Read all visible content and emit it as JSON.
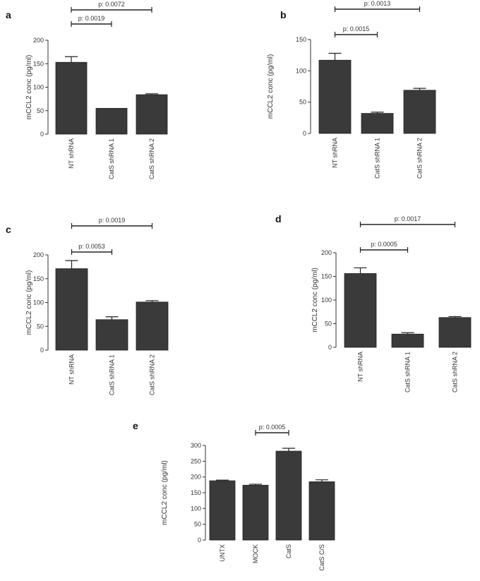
{
  "chart_data": [
    {
      "panel": "a",
      "type": "bar",
      "ylabel": "mCCL2 conc (pg/ml)",
      "ylim": [
        0,
        200
      ],
      "yticks": [
        0,
        50,
        100,
        150,
        200
      ],
      "categories": [
        "NT shRNA",
        "CatS shRNA 1",
        "CatS shRNA 2"
      ],
      "values": [
        153,
        55,
        84
      ],
      "errors": [
        12,
        0,
        2
      ],
      "bar_color": "#3a3a3a",
      "comparisons": [
        {
          "from": 0,
          "to": 1,
          "label": "p: 0.0019"
        },
        {
          "from": 0,
          "to": 2,
          "label": "p: 0.0072"
        }
      ]
    },
    {
      "panel": "b",
      "type": "bar",
      "ylabel": "mCCL2 conc (pg/ml)",
      "ylim": [
        0,
        150
      ],
      "yticks": [
        0,
        50,
        100,
        150
      ],
      "categories": [
        "NT shRNA",
        "CatS shRNA 1",
        "CatS shRNA 2"
      ],
      "values": [
        117,
        32,
        69
      ],
      "errors": [
        11,
        2,
        3
      ],
      "bar_color": "#3a3a3a",
      "comparisons": [
        {
          "from": 0,
          "to": 1,
          "label": "p: 0.0015"
        },
        {
          "from": 0,
          "to": 2,
          "label": "p: 0.0013"
        }
      ]
    },
    {
      "panel": "c",
      "type": "bar",
      "ylabel": "mCCL2 conc (pg/ml)",
      "ylim": [
        0,
        200
      ],
      "yticks": [
        0,
        50,
        100,
        150,
        200
      ],
      "categories": [
        "NT shRNA",
        "CatS shRNA 1",
        "CatS shRNA 2"
      ],
      "values": [
        171,
        64,
        101
      ],
      "errors": [
        17,
        6,
        3
      ],
      "bar_color": "#3a3a3a",
      "comparisons": [
        {
          "from": 0,
          "to": 1,
          "label": "p: 0.0053"
        },
        {
          "from": 0,
          "to": 2,
          "label": "p: 0.0019"
        }
      ]
    },
    {
      "panel": "d",
      "type": "bar",
      "ylabel": "mCCL2 conc (pg/ml)",
      "ylim": [
        0,
        200
      ],
      "yticks": [
        0,
        50,
        100,
        150,
        200
      ],
      "categories": [
        "NT shRNA",
        "CatS shRNA 1",
        "CatS shRNA 2"
      ],
      "values": [
        156,
        28,
        63
      ],
      "errors": [
        12,
        3,
        2
      ],
      "bar_color": "#3a3a3a",
      "comparisons": [
        {
          "from": 0,
          "to": 1,
          "label": "p: 0.0005"
        },
        {
          "from": 0,
          "to": 2,
          "label": "p: 0.0017"
        }
      ]
    },
    {
      "panel": "e",
      "type": "bar",
      "ylabel": "mCCL2 conc (pg/ml)",
      "ylim": [
        0,
        300
      ],
      "yticks": [
        0,
        50,
        100,
        150,
        200,
        250,
        300
      ],
      "categories": [
        "UNTX",
        "MOCK",
        "CatS",
        "CatS C/S"
      ],
      "values": [
        188,
        174,
        282,
        185
      ],
      "errors": [
        2,
        3,
        9,
        6
      ],
      "bar_color": "#3a3a3a",
      "comparisons": [
        {
          "from": 1,
          "to": 2,
          "label": "p: 0.0005"
        }
      ]
    }
  ]
}
